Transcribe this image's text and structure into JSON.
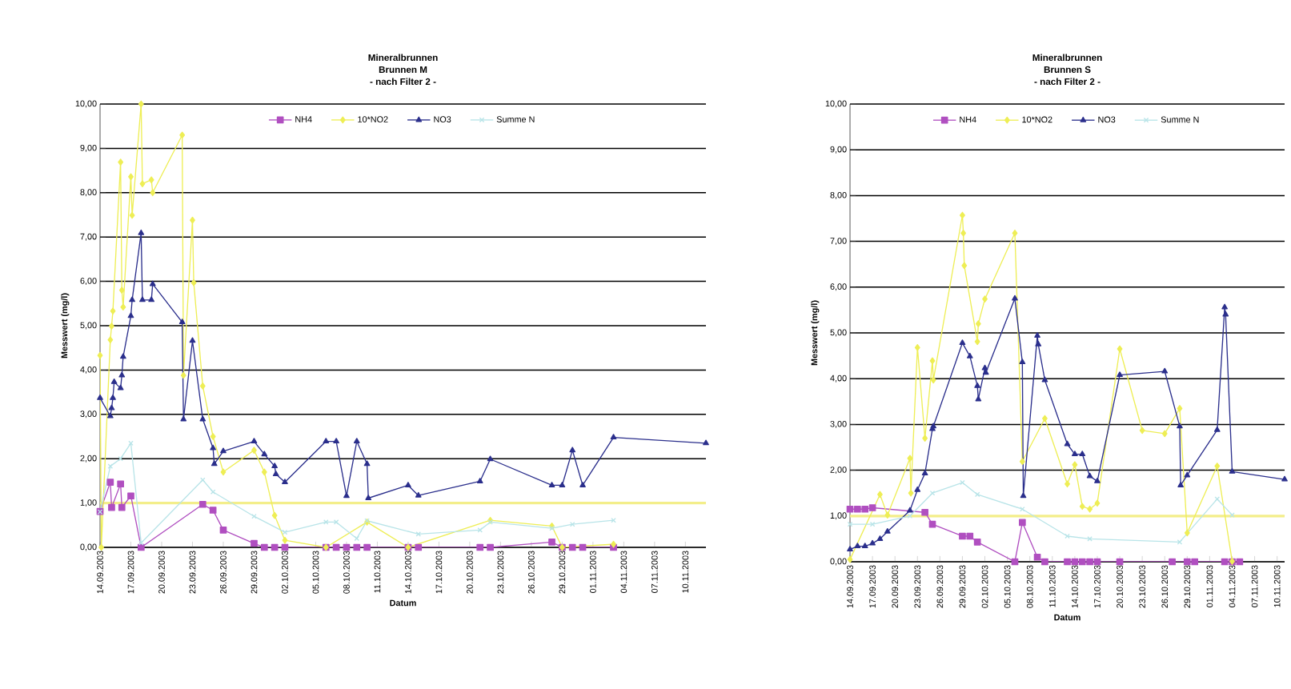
{
  "chart_data": [
    {
      "type": "line",
      "title": "Mineralbrunnen",
      "subtitle": "Brunnen M",
      "annotations": [
        "- nach Filter 2 -"
      ],
      "xlabel": "Datum",
      "ylabel": "Messwert  (mg/l)",
      "xlim": [
        "2003-09-14",
        "2003-11-12"
      ],
      "xticks": [
        {
          "value": "2003-09-14",
          "label": "14.09.2003"
        },
        {
          "value": "2003-09-17",
          "label": "17.09.2003"
        },
        {
          "value": "2003-09-20",
          "label": "20.09.2003"
        },
        {
          "value": "2003-09-23",
          "label": "23.09.2003"
        },
        {
          "value": "2003-09-26",
          "label": "26.09.2003"
        },
        {
          "value": "2003-09-29",
          "label": "29.09.2003"
        },
        {
          "value": "2003-10-02",
          "label": "02.10.2003"
        },
        {
          "value": "2003-10-05",
          "label": "05.10.2003"
        },
        {
          "value": "2003-10-08",
          "label": "08.10.2003"
        },
        {
          "value": "2003-10-11",
          "label": "11.10.2003"
        },
        {
          "value": "2003-10-14",
          "label": "14.10.2003"
        },
        {
          "value": "2003-10-17",
          "label": "17.10.2003"
        },
        {
          "value": "2003-10-20",
          "label": "20.10.2003"
        },
        {
          "value": "2003-10-23",
          "label": "23.10.2003"
        },
        {
          "value": "2003-10-26",
          "label": "26.10.2003"
        },
        {
          "value": "2003-10-29",
          "label": "29.10.2003"
        },
        {
          "value": "2003-11-01",
          "label": "01.11.2003"
        },
        {
          "value": "2003-11-04",
          "label": "04.11.2003"
        },
        {
          "value": "2003-11-07",
          "label": "07.11.2003"
        },
        {
          "value": "2003-11-10",
          "label": "10.11.2003"
        }
      ],
      "ylim": [
        0,
        10
      ],
      "yticks": [
        {
          "value": 0,
          "label": "0,00"
        },
        {
          "value": 1,
          "label": "1,00"
        },
        {
          "value": 2,
          "label": "2,00"
        },
        {
          "value": 3,
          "label": "3,00"
        },
        {
          "value": 4,
          "label": "4,00"
        },
        {
          "value": 5,
          "label": "5,00"
        },
        {
          "value": 6,
          "label": "6,00"
        },
        {
          "value": 7,
          "label": "7,00"
        },
        {
          "value": 8,
          "label": "8,00"
        },
        {
          "value": 9,
          "label": "9,00"
        },
        {
          "value": 10,
          "label": "10,00"
        }
      ],
      "grid": "y",
      "legend": "top",
      "ref_lines": [
        {
          "axis": "y",
          "value": 1,
          "color": "#f3ee8a"
        }
      ],
      "series": [
        {
          "name": "NH4",
          "color": "#b04fc0",
          "marker": "square",
          "x": [
            "2003-09-14",
            "2003-09-15",
            "2003-09-15T03:00",
            "2003-09-16",
            "2003-09-16T03:00",
            "2003-09-17",
            "2003-09-18",
            "2003-09-24",
            "2003-09-25",
            "2003-09-26",
            "2003-09-29",
            "2003-09-30",
            "2003-10-01",
            "2003-10-02",
            "2003-10-06",
            "2003-10-07",
            "2003-10-08",
            "2003-10-09",
            "2003-10-10",
            "2003-10-14",
            "2003-10-15",
            "2003-10-21",
            "2003-10-22",
            "2003-10-28",
            "2003-10-29",
            "2003-10-30",
            "2003-10-31",
            "2003-11-03"
          ],
          "values": [
            0.81,
            1.47,
            0.9,
            1.43,
            0.9,
            1.16,
            0,
            0.97,
            0.84,
            0.39,
            0.09,
            0,
            0,
            0,
            0,
            0,
            0,
            0,
            0,
            0,
            0,
            0,
            0,
            0.12,
            0,
            0,
            0,
            0
          ]
        },
        {
          "name": "10*NO2",
          "color": "#eeee55",
          "marker": "diamond",
          "x": [
            "2003-09-14",
            "2003-09-14T03:00",
            "2003-09-15",
            "2003-09-15T03:00",
            "2003-09-15T06:00",
            "2003-09-16",
            "2003-09-16T03:00",
            "2003-09-16T06:00",
            "2003-09-17",
            "2003-09-17T03:00",
            "2003-09-18",
            "2003-09-18T03:00",
            "2003-09-19",
            "2003-09-19T03:00",
            "2003-09-22",
            "2003-09-22T03:00",
            "2003-09-23",
            "2003-09-23T03:00",
            "2003-09-24",
            "2003-09-25",
            "2003-09-26",
            "2003-09-29",
            "2003-09-30",
            "2003-10-01",
            "2003-10-02",
            "2003-10-06",
            "2003-10-10",
            "2003-10-14",
            "2003-10-22",
            "2003-10-28",
            "2003-10-29",
            "2003-11-03"
          ],
          "values": [
            4.33,
            0,
            4.68,
            4.99,
            5.33,
            8.69,
            5.8,
            5.42,
            8.36,
            7.49,
            10.0,
            8.2,
            8.29,
            8.0,
            9.3,
            3.88,
            7.38,
            5.97,
            3.64,
            2.5,
            1.7,
            2.19,
            1.7,
            0.72,
            0.16,
            0,
            0.57,
            0,
            0.61,
            0.48,
            0,
            0.07
          ]
        },
        {
          "name": "NO3",
          "color": "#2b2f8c",
          "marker": "triangle",
          "x": [
            "2003-09-14",
            "2003-09-15",
            "2003-09-15T03:00",
            "2003-09-15T06:00",
            "2003-09-15T09:00",
            "2003-09-16",
            "2003-09-16T03:00",
            "2003-09-16T06:00",
            "2003-09-17",
            "2003-09-17T03:00",
            "2003-09-18",
            "2003-09-18T03:00",
            "2003-09-19",
            "2003-09-19T03:00",
            "2003-09-22",
            "2003-09-22T03:00",
            "2003-09-23",
            "2003-09-24",
            "2003-09-25",
            "2003-09-25T03:00",
            "2003-09-26",
            "2003-09-29",
            "2003-09-30",
            "2003-10-01",
            "2003-10-01T03:00",
            "2003-10-02",
            "2003-10-06",
            "2003-10-07",
            "2003-10-08",
            "2003-10-09",
            "2003-10-10",
            "2003-10-10T03:00",
            "2003-10-14",
            "2003-10-15",
            "2003-10-21",
            "2003-10-22",
            "2003-10-28",
            "2003-10-29",
            "2003-10-30",
            "2003-10-31",
            "2003-11-03",
            "2003-11-12"
          ],
          "values": [
            3.37,
            2.96,
            3.14,
            3.37,
            3.73,
            3.59,
            3.88,
            4.3,
            5.22,
            5.58,
            7.09,
            5.58,
            5.58,
            5.94,
            5.08,
            2.89,
            4.66,
            2.89,
            2.24,
            1.88,
            2.17,
            2.39,
            2.1,
            1.83,
            1.65,
            1.47,
            2.39,
            2.39,
            1.16,
            2.39,
            1.88,
            1.11,
            1.4,
            1.17,
            1.49,
            1.99,
            1.4,
            1.4,
            2.19,
            1.4,
            2.48,
            2.35
          ]
        },
        {
          "name": "Summe N",
          "color": "#b8e4e8",
          "marker": "cross",
          "x": [
            "2003-09-14",
            "2003-09-15",
            "2003-09-16",
            "2003-09-17",
            "2003-09-18",
            "2003-09-24",
            "2003-09-25",
            "2003-09-29",
            "2003-10-02",
            "2003-10-06",
            "2003-10-07",
            "2003-10-09",
            "2003-10-10",
            "2003-10-15",
            "2003-10-21",
            "2003-10-22",
            "2003-10-28",
            "2003-10-30",
            "2003-11-03"
          ],
          "values": [
            0.8,
            1.83,
            2.0,
            2.35,
            0.1,
            1.52,
            1.25,
            0.7,
            0.34,
            0.57,
            0.57,
            0.2,
            0.6,
            0.3,
            0.39,
            0.57,
            0.43,
            0.52,
            0.61
          ]
        }
      ]
    },
    {
      "type": "line",
      "title": "Mineralbrunnen",
      "subtitle": "Brunnen S",
      "annotations": [
        "- nach Filter 2 -"
      ],
      "xlabel": "Datum",
      "ylabel": "Messwert  (mg/l)",
      "xlim": [
        "2003-09-14",
        "2003-11-11"
      ],
      "xticks": [
        {
          "value": "2003-09-14",
          "label": "14.09.2003"
        },
        {
          "value": "2003-09-17",
          "label": "17.09.2003"
        },
        {
          "value": "2003-09-20",
          "label": "20.09.2003"
        },
        {
          "value": "2003-09-23",
          "label": "23.09.2003"
        },
        {
          "value": "2003-09-26",
          "label": "26.09.2003"
        },
        {
          "value": "2003-09-29",
          "label": "29.09.2003"
        },
        {
          "value": "2003-10-02",
          "label": "02.10.2003"
        },
        {
          "value": "2003-10-05",
          "label": "05.10.2003"
        },
        {
          "value": "2003-10-08",
          "label": "08.10.2003"
        },
        {
          "value": "2003-10-11",
          "label": "11.10.2003"
        },
        {
          "value": "2003-10-14",
          "label": "14.10.2003"
        },
        {
          "value": "2003-10-17",
          "label": "17.10.2003"
        },
        {
          "value": "2003-10-20",
          "label": "20.10.2003"
        },
        {
          "value": "2003-10-23",
          "label": "23.10.2003"
        },
        {
          "value": "2003-10-26",
          "label": "26.10.2003"
        },
        {
          "value": "2003-10-29",
          "label": "29.10.2003"
        },
        {
          "value": "2003-11-01",
          "label": "01.11.2003"
        },
        {
          "value": "2003-11-04",
          "label": "04.11.2003"
        },
        {
          "value": "2003-11-07",
          "label": "07.11.2003"
        },
        {
          "value": "2003-11-10",
          "label": "10.11.2003"
        }
      ],
      "ylim": [
        0,
        10
      ],
      "yticks": [
        {
          "value": 0,
          "label": "0,00"
        },
        {
          "value": 1,
          "label": "1,00"
        },
        {
          "value": 2,
          "label": "2,00"
        },
        {
          "value": 3,
          "label": "3,00"
        },
        {
          "value": 4,
          "label": "4,00"
        },
        {
          "value": 5,
          "label": "5,00"
        },
        {
          "value": 6,
          "label": "6,00"
        },
        {
          "value": 7,
          "label": "7,00"
        },
        {
          "value": 8,
          "label": "8,00"
        },
        {
          "value": 9,
          "label": "9,00"
        },
        {
          "value": 10,
          "label": "10,00"
        }
      ],
      "grid": "y",
      "legend": "top",
      "ref_lines": [
        {
          "axis": "y",
          "value": 1,
          "color": "#f3ee8a"
        }
      ],
      "series": [
        {
          "name": "NH4",
          "color": "#b04fc0",
          "marker": "square",
          "x": [
            "2003-09-14",
            "2003-09-15",
            "2003-09-16",
            "2003-09-17",
            "2003-09-24",
            "2003-09-25",
            "2003-09-29",
            "2003-09-30",
            "2003-10-01",
            "2003-10-06",
            "2003-10-07",
            "2003-10-09",
            "2003-10-10",
            "2003-10-13",
            "2003-10-14",
            "2003-10-15",
            "2003-10-16",
            "2003-10-17",
            "2003-10-20",
            "2003-10-27",
            "2003-10-29",
            "2003-10-30",
            "2003-11-03",
            "2003-11-04",
            "2003-11-05"
          ],
          "values": [
            1.15,
            1.15,
            1.15,
            1.18,
            1.08,
            0.82,
            0.56,
            0.56,
            0.43,
            0,
            0.86,
            0.1,
            0,
            0,
            0,
            0,
            0,
            0,
            0,
            0,
            0,
            0,
            0,
            0,
            0
          ]
        },
        {
          "name": "10*NO2",
          "color": "#eeee55",
          "marker": "diamond",
          "x": [
            "2003-09-14",
            "2003-09-18",
            "2003-09-19",
            "2003-09-22",
            "2003-09-22T03:00",
            "2003-09-23",
            "2003-09-24",
            "2003-09-25",
            "2003-09-25T03:00",
            "2003-09-29",
            "2003-09-29T03:00",
            "2003-09-29T06:00",
            "2003-10-01",
            "2003-10-01T03:00",
            "2003-10-02",
            "2003-10-06",
            "2003-10-07",
            "2003-10-10",
            "2003-10-13",
            "2003-10-14",
            "2003-10-15",
            "2003-10-16",
            "2003-10-17",
            "2003-10-20",
            "2003-10-23",
            "2003-10-26",
            "2003-10-28",
            "2003-10-29",
            "2003-11-02",
            "2003-11-04"
          ],
          "values": [
            0.05,
            1.47,
            1.02,
            2.26,
            1.5,
            4.68,
            2.7,
            4.39,
            3.97,
            7.57,
            7.18,
            6.47,
            4.81,
            5.2,
            5.74,
            7.18,
            2.19,
            3.13,
            1.7,
            2.12,
            1.21,
            1.15,
            1.28,
            4.65,
            2.87,
            2.8,
            3.35,
            0.63,
            2.09,
            0.01
          ]
        },
        {
          "name": "NO3",
          "color": "#2b2f8c",
          "marker": "triangle",
          "x": [
            "2003-09-14",
            "2003-09-15",
            "2003-09-16",
            "2003-09-17",
            "2003-09-18",
            "2003-09-19",
            "2003-09-22",
            "2003-09-23",
            "2003-09-24",
            "2003-09-25",
            "2003-09-25T03:00",
            "2003-09-29",
            "2003-09-30",
            "2003-10-01",
            "2003-10-01T03:00",
            "2003-10-02",
            "2003-10-02T03:00",
            "2003-10-06",
            "2003-10-07",
            "2003-10-07T03:00",
            "2003-10-09",
            "2003-10-09T03:00",
            "2003-10-10",
            "2003-10-13",
            "2003-10-14",
            "2003-10-15",
            "2003-10-16",
            "2003-10-17",
            "2003-10-20",
            "2003-10-26",
            "2003-10-28",
            "2003-10-28T03:00",
            "2003-10-29",
            "2003-11-02",
            "2003-11-03",
            "2003-11-03T03:00",
            "2003-11-04",
            "2003-11-11"
          ],
          "values": [
            0.27,
            0.34,
            0.34,
            0.4,
            0.5,
            0.66,
            1.12,
            1.57,
            1.93,
            2.9,
            2.96,
            4.78,
            4.49,
            3.84,
            3.55,
            4.23,
            4.13,
            5.75,
            4.36,
            1.44,
            4.94,
            4.75,
            3.97,
            2.57,
            2.35,
            2.35,
            1.87,
            1.76,
            4.08,
            4.16,
            2.96,
            1.67,
            1.89,
            2.88,
            5.56,
            5.4,
            1.97,
            1.8
          ]
        },
        {
          "name": "Summe N",
          "color": "#b8e4e8",
          "marker": "cross",
          "x": [
            "2003-09-14",
            "2003-09-17",
            "2003-09-22",
            "2003-09-25",
            "2003-09-29",
            "2003-10-01",
            "2003-10-07",
            "2003-10-13",
            "2003-10-16",
            "2003-10-28",
            "2003-11-02",
            "2003-11-04"
          ],
          "values": [
            0.82,
            0.82,
            1.0,
            1.5,
            1.73,
            1.47,
            1.15,
            0.56,
            0.5,
            0.43,
            1.37,
            1.02
          ]
        }
      ]
    }
  ]
}
